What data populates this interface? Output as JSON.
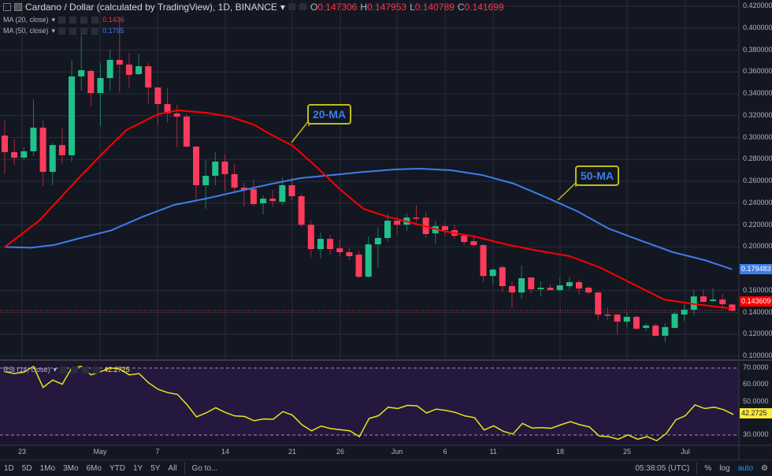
{
  "header": {
    "symbol_title": "Cardano / Dollar (calculated by TradingView), 1D, BINANCE",
    "o_label": "O",
    "o": "0.147306",
    "h_label": "H",
    "h": "0.147953",
    "l_label": "L",
    "l": "0.140789",
    "c_label": "C",
    "c": "0.141699"
  },
  "indicators": {
    "ma20_label": "MA (20, close)",
    "ma20_value": "0.1436",
    "ma50_label": "MA (50, close)",
    "ma50_value": "0.1795",
    "rsi_label": "RSI (14, close)",
    "rsi_value": "42.2725"
  },
  "price_axis": [
    "0.420000",
    "0.400000",
    "0.380000",
    "0.360000",
    "0.340000",
    "0.320000",
    "0.300000",
    "0.280000",
    "0.260000",
    "0.240000",
    "0.220000",
    "0.200000",
    "0.160000",
    "0.140000",
    "0.120000",
    "0.100000"
  ],
  "price_tags": {
    "ma50": "0.179483",
    "last": "0.143609"
  },
  "rsi_axis": [
    "70.0000",
    "60.0000",
    "50.0000",
    "30.0000"
  ],
  "rsi_tag": "42.2725",
  "annotations": {
    "ma20": "20-MA",
    "ma50": "50-MA"
  },
  "dates": [
    "23",
    "May",
    "7",
    "14",
    "21",
    "26",
    "Jun",
    "6",
    "11",
    "18",
    "25",
    "Jul"
  ],
  "toolbar": {
    "ranges": [
      "1D",
      "5D",
      "1Mo",
      "3Mo",
      "6Mo",
      "YTD",
      "1Y",
      "5Y",
      "All"
    ],
    "goto": "Go to...",
    "time": "05:38:05 (UTC)",
    "percent": "%",
    "log": "log",
    "auto": "auto"
  },
  "colors": {
    "up": "#26a69a",
    "down": "#ff3347",
    "ma20": "#ff0000",
    "ma50": "#3d7de8",
    "rsi": "#e6e619"
  },
  "chart_data": {
    "type": "candlestick",
    "ylim": [
      0.1,
      0.42
    ],
    "candles": [
      [
        0.3018,
        0.3155,
        0.2672,
        0.2866
      ],
      [
        0.2866,
        0.2989,
        0.2751,
        0.2816
      ],
      [
        0.2816,
        0.291,
        0.2794,
        0.2874
      ],
      [
        0.2874,
        0.335,
        0.283,
        0.309
      ],
      [
        0.309,
        0.3155,
        0.2556,
        0.2686
      ],
      [
        0.2686,
        0.2953,
        0.2564,
        0.2931
      ],
      [
        0.2931,
        0.3083,
        0.2758,
        0.2838
      ],
      [
        0.2838,
        0.371,
        0.278,
        0.3559
      ],
      [
        0.3559,
        0.3934,
        0.3429,
        0.3616
      ],
      [
        0.3609,
        0.3624,
        0.3285,
        0.3407
      ],
      [
        0.3407,
        0.3681,
        0.3104,
        0.3544
      ],
      [
        0.3544,
        0.3804,
        0.3429,
        0.371
      ],
      [
        0.371,
        0.4056,
        0.3414,
        0.3667
      ],
      [
        0.3667,
        0.3775,
        0.345,
        0.3573
      ],
      [
        0.358,
        0.3768,
        0.3573,
        0.3652
      ],
      [
        0.3652,
        0.3681,
        0.3313,
        0.3458
      ],
      [
        0.3458,
        0.3465,
        0.3119,
        0.3306
      ],
      [
        0.3306,
        0.345,
        0.314,
        0.322
      ],
      [
        0.322,
        0.3299,
        0.291,
        0.3191
      ],
      [
        0.3191,
        0.3213,
        0.291,
        0.2917
      ],
      [
        0.2917,
        0.2924,
        0.2434,
        0.2564
      ],
      [
        0.2564,
        0.2794,
        0.2347,
        0.265
      ],
      [
        0.265,
        0.2866,
        0.2564,
        0.278
      ],
      [
        0.278,
        0.2845,
        0.2506,
        0.2665
      ],
      [
        0.2665,
        0.2758,
        0.2506,
        0.2542
      ],
      [
        0.2542,
        0.2585,
        0.2369,
        0.252
      ],
      [
        0.2528,
        0.2621,
        0.2369,
        0.2391
      ],
      [
        0.2398,
        0.247,
        0.2297,
        0.2441
      ],
      [
        0.2441,
        0.252,
        0.2369,
        0.2419
      ],
      [
        0.2412,
        0.2636,
        0.2383,
        0.2564
      ],
      [
        0.2564,
        0.2636,
        0.2427,
        0.2463
      ],
      [
        0.2463,
        0.2484,
        0.2182,
        0.2203
      ],
      [
        0.2203,
        0.2239,
        0.1908,
        0.198
      ],
      [
        0.198,
        0.2131,
        0.1893,
        0.2073
      ],
      [
        0.2073,
        0.2109,
        0.1929,
        0.198
      ],
      [
        0.1987,
        0.2059,
        0.1915,
        0.1951
      ],
      [
        0.1951,
        0.1987,
        0.1879,
        0.1915
      ],
      [
        0.1929,
        0.1965,
        0.1713,
        0.1727
      ],
      [
        0.1727,
        0.2095,
        0.172,
        0.2023
      ],
      [
        0.2023,
        0.2182,
        0.1807,
        0.2081
      ],
      [
        0.2081,
        0.2304,
        0.2045,
        0.2239
      ],
      [
        0.2239,
        0.2275,
        0.2117,
        0.2203
      ],
      [
        0.2203,
        0.2311,
        0.2145,
        0.2268
      ],
      [
        0.2268,
        0.2383,
        0.2225,
        0.2261
      ],
      [
        0.2268,
        0.2319,
        0.2081,
        0.2117
      ],
      [
        0.2124,
        0.2239,
        0.2023,
        0.2189
      ],
      [
        0.2189,
        0.2225,
        0.2095,
        0.2153
      ],
      [
        0.2153,
        0.2196,
        0.2073,
        0.2102
      ],
      [
        0.2102,
        0.2109,
        0.2016,
        0.2045
      ],
      [
        0.2052,
        0.2109,
        0.2001,
        0.2016
      ],
      [
        0.2016,
        0.203,
        0.1677,
        0.1734
      ],
      [
        0.1734,
        0.1807,
        0.1662,
        0.1792
      ],
      [
        0.1814,
        0.1828,
        0.159,
        0.1641
      ],
      [
        0.1641,
        0.1684,
        0.1439,
        0.1583
      ],
      [
        0.1583,
        0.1828,
        0.1525,
        0.1713
      ],
      [
        0.172,
        0.172,
        0.1576,
        0.1612
      ],
      [
        0.1612,
        0.1684,
        0.1547,
        0.1626
      ],
      [
        0.1626,
        0.1655,
        0.1605,
        0.1605
      ],
      [
        0.1605,
        0.172,
        0.159,
        0.1648
      ],
      [
        0.1641,
        0.1727,
        0.1612,
        0.1677
      ],
      [
        0.1677,
        0.1698,
        0.1561,
        0.1619
      ],
      [
        0.1626,
        0.1641,
        0.1569,
        0.1583
      ],
      [
        0.1583,
        0.159,
        0.1331,
        0.1381
      ],
      [
        0.1381,
        0.1446,
        0.1331,
        0.1374
      ],
      [
        0.1381,
        0.1388,
        0.1201,
        0.1316
      ],
      [
        0.1316,
        0.1403,
        0.1266,
        0.136
      ],
      [
        0.136,
        0.1374,
        0.1244,
        0.1251
      ],
      [
        0.1259,
        0.1302,
        0.123,
        0.128
      ],
      [
        0.128,
        0.1302,
        0.1179,
        0.1187
      ],
      [
        0.1187,
        0.1302,
        0.1129,
        0.1266
      ],
      [
        0.1259,
        0.141,
        0.1259,
        0.1388
      ],
      [
        0.1381,
        0.1475,
        0.1324,
        0.1425
      ],
      [
        0.1425,
        0.1612,
        0.1374,
        0.1547
      ],
      [
        0.1547,
        0.1612,
        0.1489,
        0.1497
      ],
      [
        0.1504,
        0.1619,
        0.1497,
        0.1518
      ],
      [
        0.1518,
        0.1569,
        0.1425,
        0.1475
      ],
      [
        0.1473,
        0.148,
        0.1408,
        0.1417
      ]
    ],
    "ma20": [
      [
        0,
        0.1999
      ],
      [
        3.6,
        0.2239
      ],
      [
        7.8,
        0.2636
      ],
      [
        10.2,
        0.2852
      ],
      [
        12.7,
        0.3068
      ],
      [
        16,
        0.3213
      ],
      [
        18.1,
        0.3249
      ],
      [
        21,
        0.3227
      ],
      [
        23.5,
        0.3191
      ],
      [
        26,
        0.3119
      ],
      [
        28,
        0.3018
      ],
      [
        30.1,
        0.2924
      ],
      [
        32.6,
        0.2729
      ],
      [
        35,
        0.2528
      ],
      [
        37.5,
        0.2347
      ],
      [
        40,
        0.2275
      ],
      [
        43.3,
        0.2203
      ],
      [
        45.8,
        0.2145
      ],
      [
        49.1,
        0.2095
      ],
      [
        52.4,
        0.2023
      ],
      [
        55.7,
        0.1965
      ],
      [
        59,
        0.1915
      ],
      [
        62.3,
        0.1807
      ],
      [
        65.6,
        0.1662
      ],
      [
        68.9,
        0.1518
      ],
      [
        72.2,
        0.1475
      ],
      [
        76,
        0.1436
      ]
    ],
    "ma50": [
      [
        0,
        0.1999
      ],
      [
        2.8,
        0.1992
      ],
      [
        5.3,
        0.202
      ],
      [
        7.8,
        0.2078
      ],
      [
        11.1,
        0.215
      ],
      [
        14.4,
        0.2275
      ],
      [
        17.7,
        0.2384
      ],
      [
        21,
        0.2441
      ],
      [
        24.3,
        0.2506
      ],
      [
        27.6,
        0.2571
      ],
      [
        30.9,
        0.2629
      ],
      [
        34.2,
        0.2657
      ],
      [
        37.5,
        0.2686
      ],
      [
        40.8,
        0.2708
      ],
      [
        43.3,
        0.2715
      ],
      [
        46.6,
        0.2701
      ],
      [
        49.9,
        0.2657
      ],
      [
        53.2,
        0.2578
      ],
      [
        56.5,
        0.2455
      ],
      [
        59.8,
        0.2326
      ],
      [
        63.1,
        0.2167
      ],
      [
        66.4,
        0.2059
      ],
      [
        69.8,
        0.1951
      ],
      [
        73.1,
        0.1879
      ],
      [
        76,
        0.1795
      ]
    ],
    "rsi": {
      "ylim": [
        20,
        75
      ],
      "bands": [
        30,
        70
      ],
      "values": [
        67.8,
        66.7,
        67.5,
        71,
        58.4,
        62.8,
        60.3,
        70.2,
        71,
        65.9,
        67.8,
        70.1,
        69.4,
        65.9,
        66.7,
        61.2,
        57.3,
        55.3,
        54.3,
        48.2,
        40.8,
        43.2,
        46.3,
        43.5,
        41.4,
        41.1,
        38.5,
        39.6,
        39.4,
        44,
        41.9,
        36.1,
        32.5,
        35.3,
        33.8,
        33.2,
        32.5,
        29,
        39.9,
        41.6,
        46.6,
        45.8,
        47.7,
        47.4,
        43.2,
        45.5,
        44.7,
        43.5,
        41.4,
        40.4,
        33,
        35.5,
        32.2,
        30.6,
        36.9,
        34.2,
        34.4,
        34,
        36.1,
        38,
        36.1,
        34.8,
        29.4,
        29,
        27.5,
        30.1,
        27.5,
        29,
        26.6,
        30.9,
        39.1,
        41.6,
        48,
        45.8,
        46.6,
        45.1,
        42.3
      ]
    }
  }
}
